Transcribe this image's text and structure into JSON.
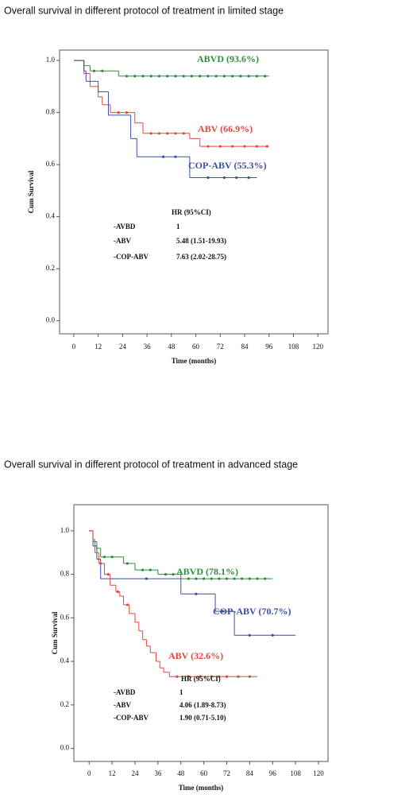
{
  "chart_data": [
    {
      "type": "line",
      "step": true,
      "title": "Overall survival in different protocol of treatment in limited stage",
      "x_label": "Time (months)",
      "y_label": "Cum Survival",
      "xlim": [
        -7,
        125
      ],
      "ylim": [
        -0.05,
        1.04
      ],
      "xticks": [
        0,
        12,
        24,
        36,
        48,
        60,
        72,
        84,
        96,
        108,
        120
      ],
      "yticks": [
        {
          "value": 0,
          "label": "0.0"
        },
        {
          "value": 0.2,
          "label": "0.2"
        },
        {
          "value": 0.4,
          "label": "0.4"
        },
        {
          "value": 0.6,
          "label": "0.6"
        },
        {
          "value": 0.8,
          "label": "0.8"
        },
        {
          "value": 1,
          "label": "1.0"
        }
      ],
      "series": [
        {
          "name": "ABVD (93.6%)",
          "color": "#2f8a3a",
          "x": [
            0,
            5,
            8,
            22,
            96
          ],
          "values": [
            1,
            0.98,
            0.96,
            0.94,
            0.94
          ],
          "censored": [
            10,
            14,
            26,
            30,
            34,
            38,
            42,
            46,
            50,
            54,
            58,
            62,
            66,
            70,
            74,
            78,
            82,
            86,
            90,
            94
          ]
        },
        {
          "name": "ABV (66.9%)",
          "color": "#e0473c",
          "x": [
            0,
            5,
            8,
            12,
            14,
            18,
            30,
            34,
            57,
            62,
            96
          ],
          "values": [
            1,
            0.95,
            0.9,
            0.86,
            0.83,
            0.8,
            0.76,
            0.72,
            0.7,
            0.67,
            0.67
          ],
          "censored": [
            22,
            26,
            38,
            42,
            46,
            50,
            54,
            66,
            72,
            78,
            84,
            90,
            95
          ]
        },
        {
          "name": "COP-ABV (55.3%)",
          "color": "#3b4fa0",
          "x": [
            0,
            5,
            6,
            12,
            17,
            28,
            31,
            57,
            90
          ],
          "values": [
            1,
            0.96,
            0.92,
            0.88,
            0.79,
            0.7,
            0.63,
            0.55,
            0.55
          ],
          "censored": [
            44,
            50,
            66,
            74,
            80,
            86
          ]
        }
      ],
      "hr_table": {
        "header": "HR (95%CI)",
        "rows": [
          [
            "-AVBD",
            "1"
          ],
          [
            "-ABV",
            "5.48 (1.51-19.93)"
          ],
          [
            "-COP-ABV",
            "7.63 (2.02-28.75)"
          ]
        ]
      }
    },
    {
      "type": "line",
      "step": true,
      "title": "Overall survival in different protocol of treatment in advanced stage",
      "x_label": "Time (months)",
      "y_label": "Cum Survival",
      "xlim": [
        -8,
        125
      ],
      "ylim": [
        -0.06,
        1.12
      ],
      "xticks": [
        0,
        12,
        24,
        36,
        48,
        60,
        72,
        84,
        96,
        108,
        120
      ],
      "yticks": [
        {
          "value": 0,
          "label": "0.0"
        },
        {
          "value": 0.2,
          "label": "0.2"
        },
        {
          "value": 0.4,
          "label": "0.4"
        },
        {
          "value": 0.6,
          "label": "0.6"
        },
        {
          "value": 0.8,
          "label": "0.8"
        },
        {
          "value": 1,
          "label": "1.0"
        }
      ],
      "series": [
        {
          "name": "ABVD (78.1%)",
          "color": "#2f8a3a",
          "x": [
            0,
            2,
            4,
            6,
            18,
            24,
            36,
            48,
            96
          ],
          "values": [
            1,
            0.95,
            0.92,
            0.88,
            0.85,
            0.82,
            0.8,
            0.78,
            0.78
          ],
          "censored": [
            8,
            12,
            20,
            28,
            32,
            40,
            44,
            52,
            56,
            60,
            64,
            68,
            72,
            76,
            80,
            84,
            88,
            92
          ]
        },
        {
          "name": "COP-ABV (70.7%)",
          "color": "#3b4fa0",
          "x": [
            0,
            2,
            4,
            6,
            48,
            66,
            76,
            108
          ],
          "values": [
            1,
            0.93,
            0.87,
            0.78,
            0.71,
            0.63,
            0.52,
            0.52
          ],
          "censored": [
            30,
            56,
            70,
            84,
            96
          ]
        },
        {
          "name": "ABV (32.6%)",
          "color": "#e0473c",
          "x": [
            0,
            2,
            3,
            5,
            8,
            11,
            14,
            16,
            18,
            21,
            24,
            26,
            28,
            30,
            32,
            35,
            37,
            39,
            42,
            88
          ],
          "values": [
            1,
            0.96,
            0.9,
            0.85,
            0.8,
            0.75,
            0.72,
            0.7,
            0.66,
            0.62,
            0.58,
            0.54,
            0.5,
            0.47,
            0.44,
            0.4,
            0.37,
            0.35,
            0.33,
            0.33
          ],
          "censored": [
            6,
            10,
            15,
            20,
            46,
            52,
            58,
            64,
            68,
            72,
            78,
            84
          ]
        }
      ],
      "hr_table": {
        "header": "HR (95%CI)",
        "rows": [
          [
            "-AVBD",
            "1"
          ],
          [
            "-ABV",
            "4.06 (1.89-8.73)"
          ],
          [
            "-COP-ABV",
            "1.90 (0.71-5.10)"
          ]
        ]
      }
    }
  ]
}
